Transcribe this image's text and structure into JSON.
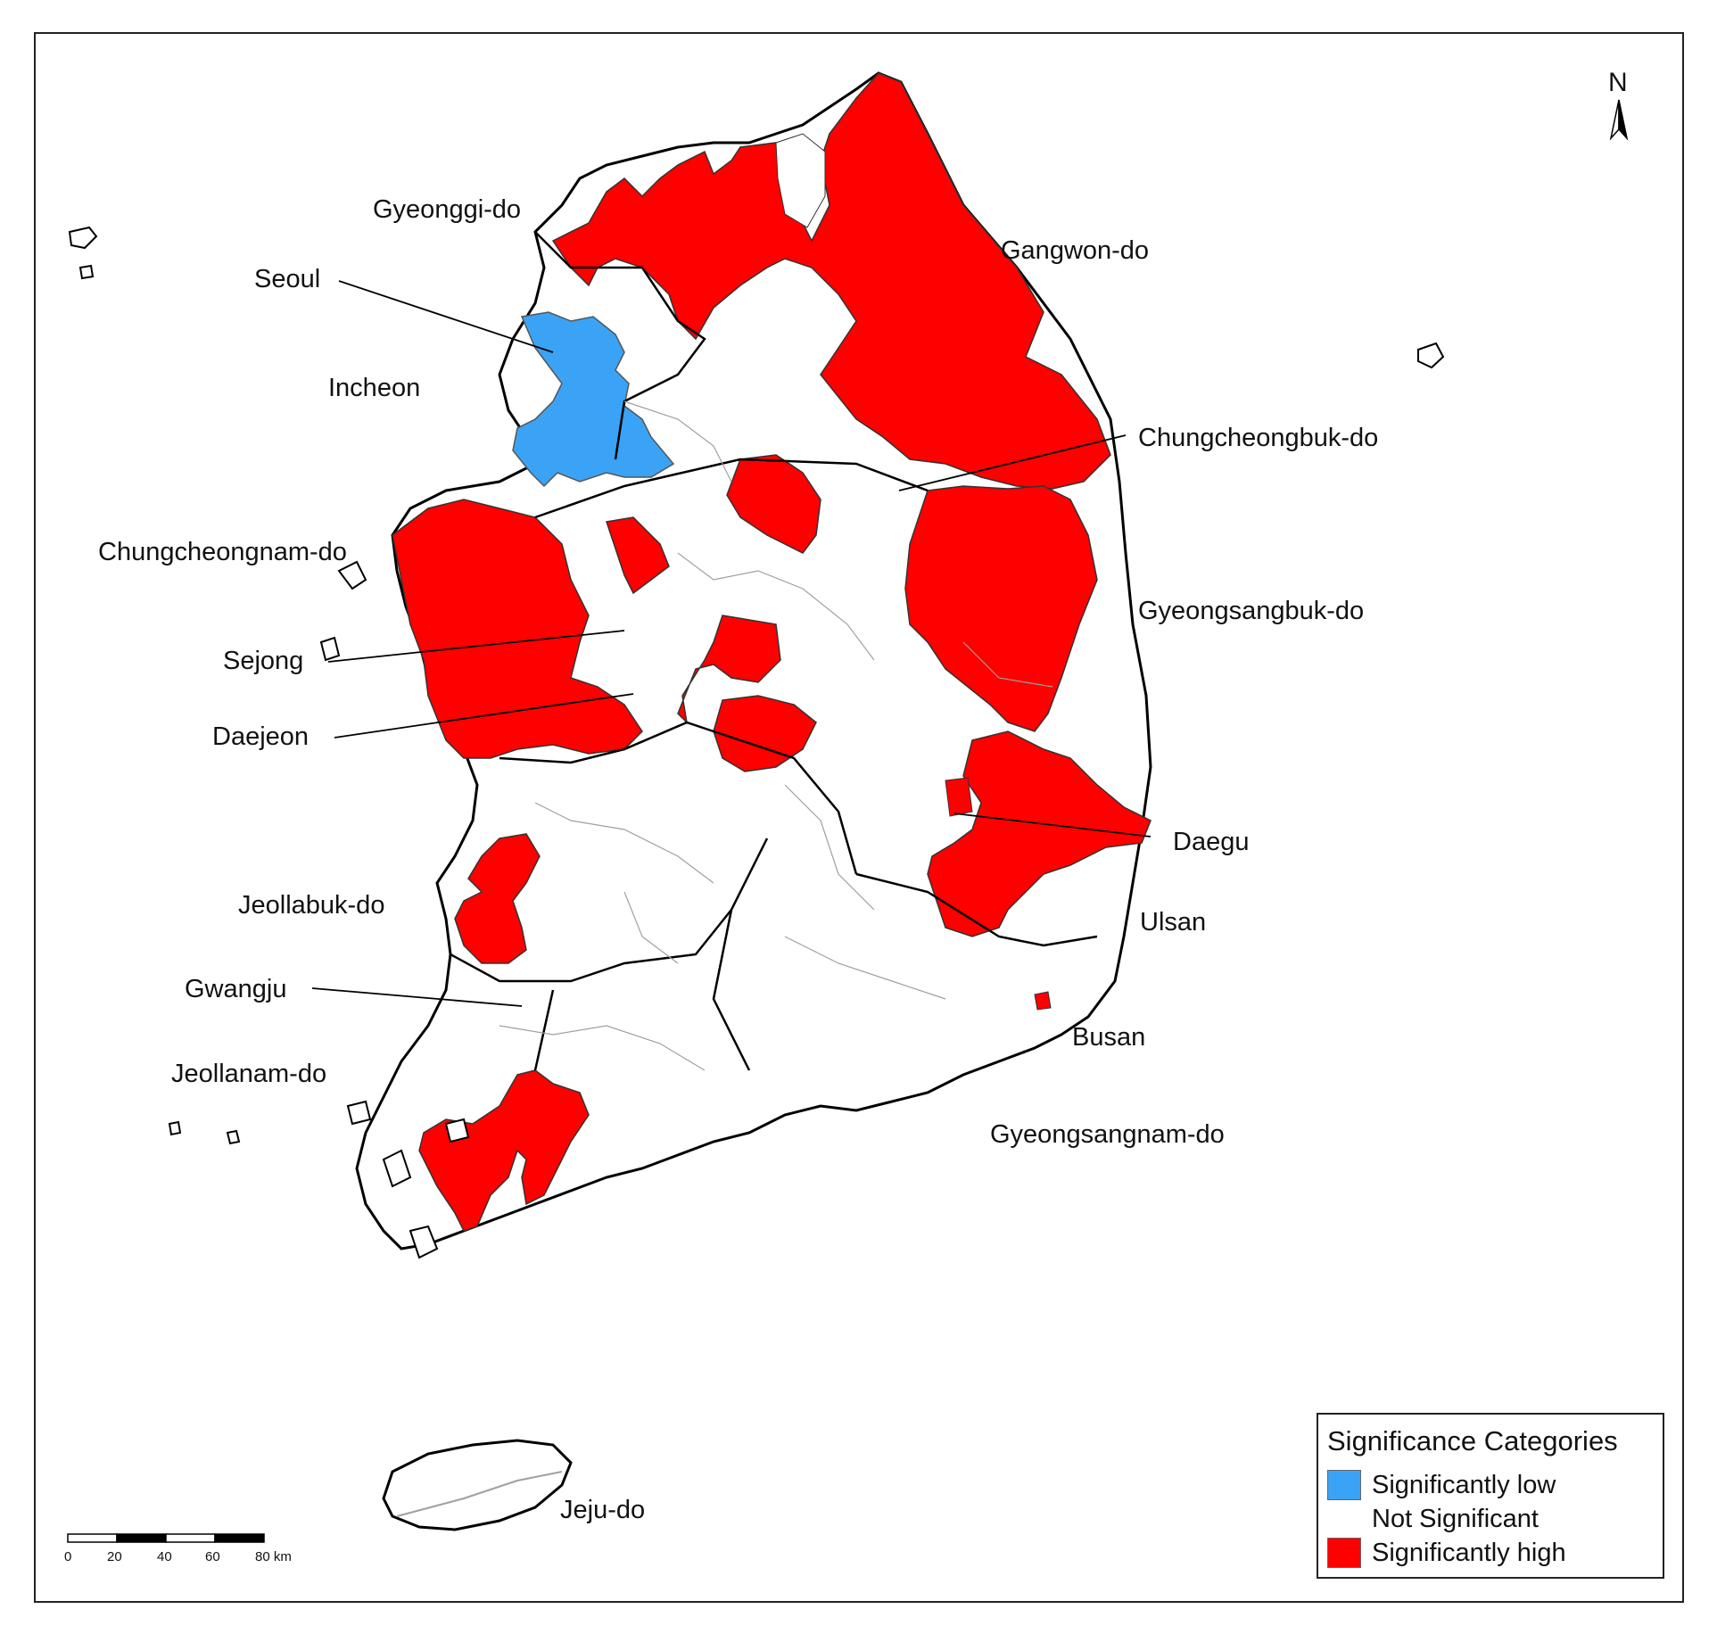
{
  "colors": {
    "significantly_low": "#3ba3f5",
    "not_significant": "#ffffff",
    "significantly_high": "#ff0000",
    "boundary_province": "#000000",
    "boundary_district": "#a0a0a0"
  },
  "north_arrow": {
    "label": "N",
    "icon": "north-arrow-icon"
  },
  "labels": {
    "gyeonggi": "Gyeonggi-do",
    "gangwon": "Gangwon-do",
    "seoul": "Seoul",
    "incheon": "Incheon",
    "chungbuk": "Chungcheongbuk-do",
    "chungnam": "Chungcheongnam-do",
    "gyeongbuk": "Gyeongsangbuk-do",
    "sejong": "Sejong",
    "daejeon": "Daejeon",
    "daegu": "Daegu",
    "jeonbuk": "Jeollabuk-do",
    "ulsan": "Ulsan",
    "gwangju": "Gwangju",
    "busan": "Busan",
    "jeonnam": "Jeollanam-do",
    "gyeongnam": "Gyeongsangnam-do",
    "jeju": "Jeju-do"
  },
  "legend": {
    "title": "Significance Categories",
    "items": [
      {
        "label": "Significantly low",
        "color": "#3ba3f5"
      },
      {
        "label": "Not Significant",
        "color": "#ffffff"
      },
      {
        "label": "Significantly high",
        "color": "#ff0000"
      }
    ]
  },
  "scale_bar": {
    "ticks": [
      "0",
      "20",
      "40",
      "60",
      "80 km"
    ]
  }
}
